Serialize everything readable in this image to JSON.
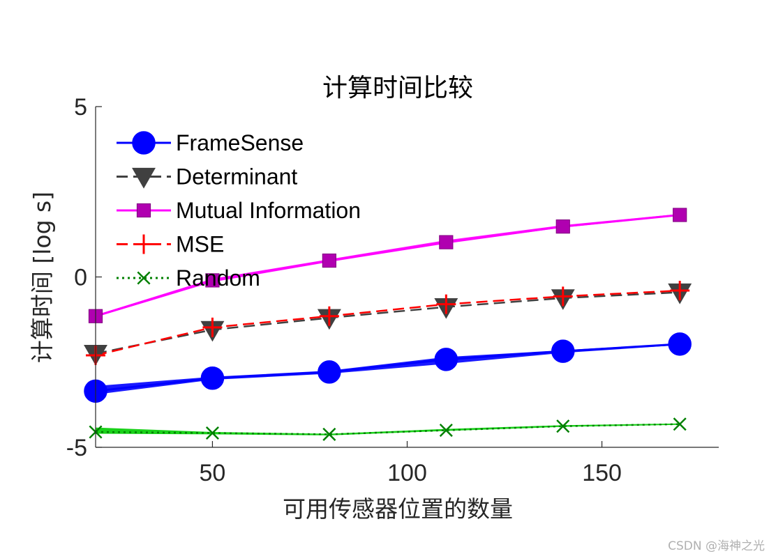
{
  "chart_data": {
    "type": "line",
    "title": "计算时间比较",
    "xlabel": "可用传感器位置的数量",
    "ylabel": "计算时间 [log s]",
    "xlim": [
      20,
      180
    ],
    "ylim": [
      -5,
      5
    ],
    "xticks": [
      50,
      100,
      150
    ],
    "yticks": [
      -5,
      0,
      5
    ],
    "xtick_labels": [
      "50",
      "100",
      "150"
    ],
    "ytick_labels": [
      "-5",
      "0",
      "5"
    ],
    "grid": false,
    "legend_position": "top-left",
    "x": [
      20,
      50,
      80,
      110,
      140,
      170
    ],
    "series": [
      {
        "name": "FrameSense",
        "values": [
          -3.35,
          -2.97,
          -2.79,
          -2.42,
          -2.18,
          -1.97
        ],
        "band_low": [
          -3.45,
          -3.02,
          -2.84,
          -2.55,
          -2.23,
          -2.0
        ],
        "band_high": [
          -3.2,
          -2.93,
          -2.75,
          -2.35,
          -2.15,
          -1.95
        ],
        "color": "#0000ff",
        "marker": "circle",
        "dash": "solid"
      },
      {
        "name": "Determinant",
        "values": [
          -2.25,
          -1.55,
          -1.2,
          -0.88,
          -0.62,
          -0.45
        ],
        "color": "#404040",
        "marker": "triangle-down",
        "dash": "dashed"
      },
      {
        "name": "Mutual Information",
        "values": [
          -1.15,
          -0.1,
          0.48,
          1.02,
          1.48,
          1.82
        ],
        "band_low": [
          -1.18,
          -0.15,
          0.44,
          0.98,
          1.45,
          1.8
        ],
        "band_high": [
          -1.12,
          -0.05,
          0.52,
          1.08,
          1.52,
          1.85
        ],
        "color": "#b000b0",
        "line_color": "#ff00ff",
        "marker": "square",
        "dash": "solid"
      },
      {
        "name": "MSE",
        "values": [
          -2.3,
          -1.48,
          -1.15,
          -0.8,
          -0.57,
          -0.4
        ],
        "color": "#ff0000",
        "marker": "plus",
        "dash": "dashed"
      },
      {
        "name": "Random",
        "values": [
          -4.55,
          -4.58,
          -4.62,
          -4.5,
          -4.38,
          -4.32
        ],
        "band_low": [
          -4.6,
          -4.62,
          -4.65,
          -4.52,
          -4.4,
          -4.34
        ],
        "band_high": [
          -4.42,
          -4.55,
          -4.6,
          -4.46,
          -4.35,
          -4.3
        ],
        "color": "#008000",
        "line_color": "#00cc00",
        "marker": "x",
        "dash": "dotted"
      }
    ]
  },
  "watermark": "CSDN @海神之光"
}
